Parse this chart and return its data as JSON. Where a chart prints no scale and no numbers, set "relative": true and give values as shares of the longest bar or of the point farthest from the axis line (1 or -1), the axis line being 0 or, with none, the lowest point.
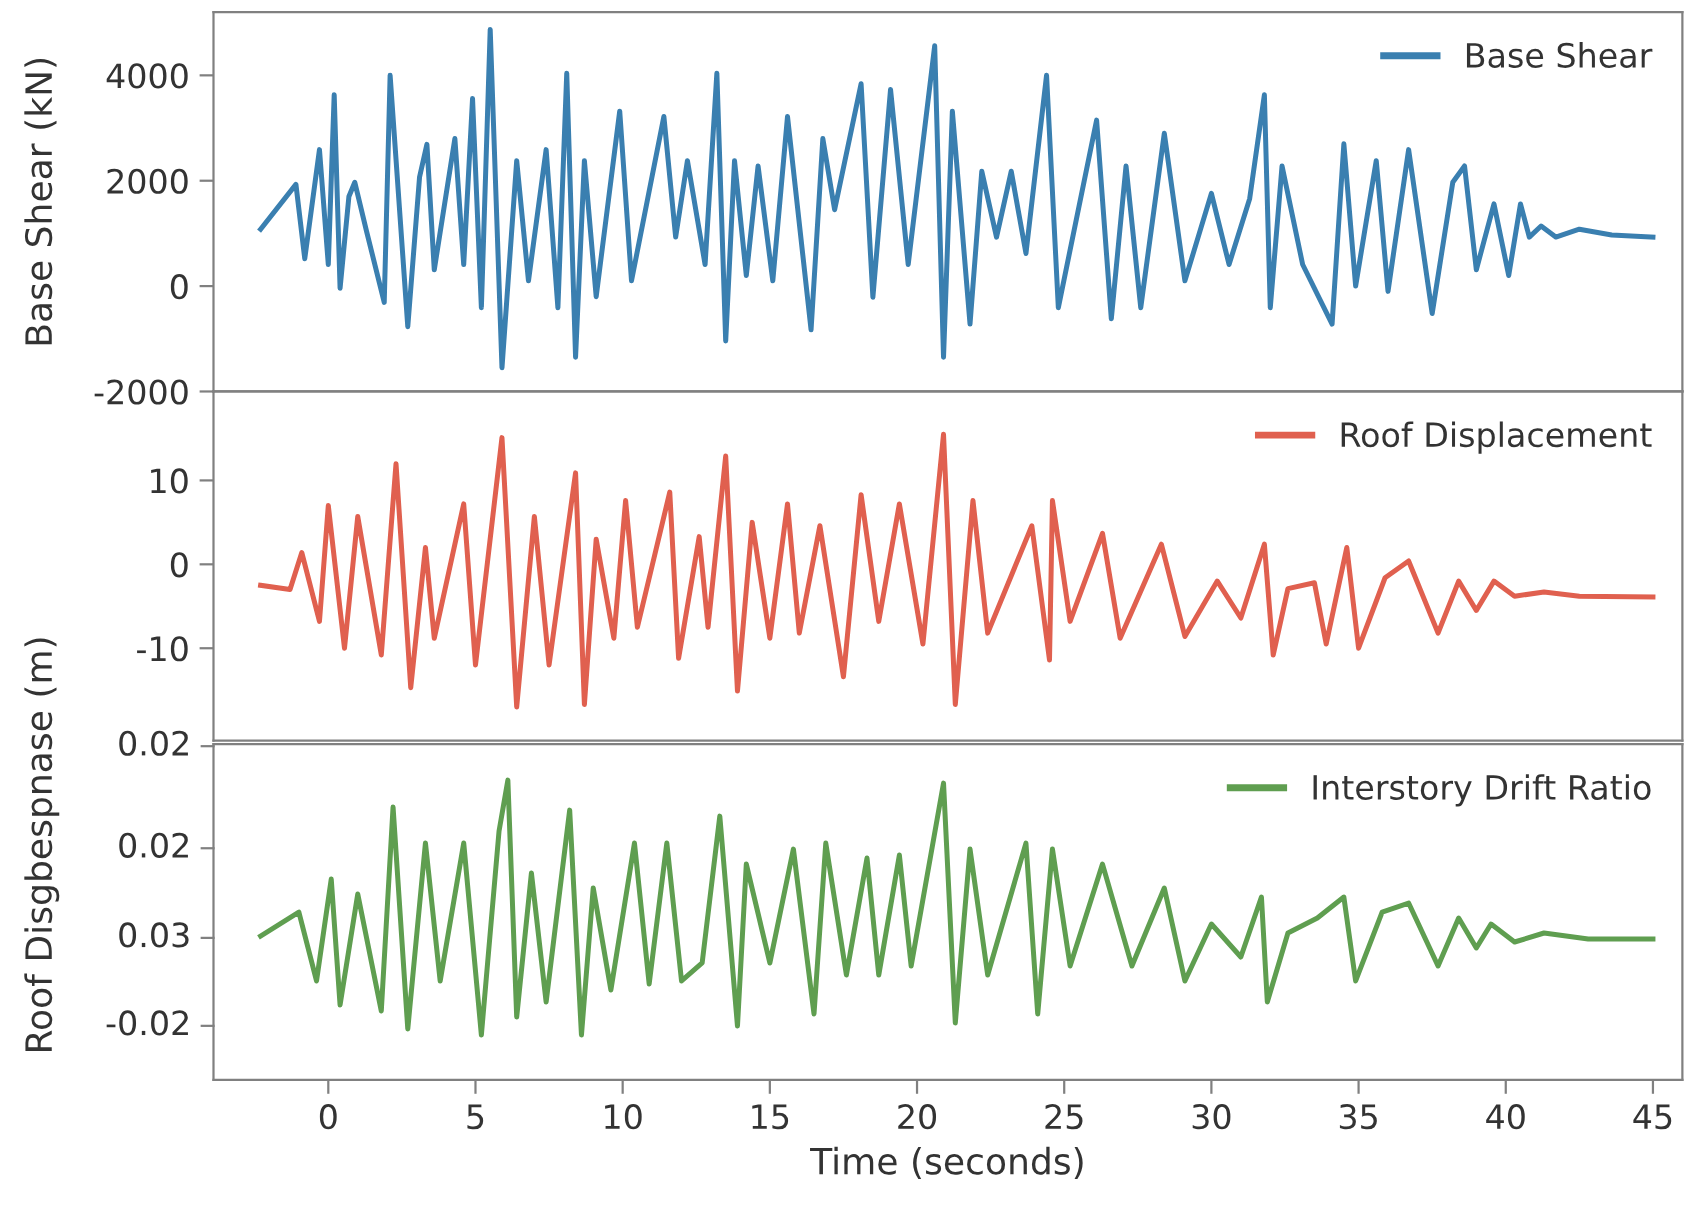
{
  "chart_data": [
    {
      "type": "line",
      "ylabel": "Base Shear (kN)",
      "xlim": [
        -3.9,
        46
      ],
      "ylim": [
        -2000,
        5200
      ],
      "yticks": [
        -2000,
        0,
        2000,
        4000
      ],
      "tick_labels": "y",
      "legend": "top right",
      "grid": false,
      "series": [
        {
          "name": "Base Shear",
          "color": "#3a7fb0",
          "x": [
            -2.3,
            -1.1,
            -0.8,
            -0.3,
            0,
            0.2,
            0.4,
            0.7,
            0.9,
            1.3,
            1.9,
            2.1,
            2.7,
            3.1,
            3.35,
            3.6,
            4.3,
            4.6,
            4.9,
            5.2,
            5.5,
            5.9,
            6.4,
            6.8,
            7.4,
            7.8,
            8.1,
            8.4,
            8.7,
            9.1,
            9.9,
            10.3,
            11.4,
            11.8,
            12.2,
            12.8,
            13.2,
            13.5,
            13.8,
            14.2,
            14.6,
            15.1,
            15.6,
            16.4,
            16.8,
            17.2,
            18.1,
            18.5,
            19.1,
            19.7,
            20.6,
            20.9,
            21.2,
            21.8,
            22.2,
            22.7,
            23.2,
            23.7,
            24.4,
            24.8,
            26.1,
            26.6,
            27.1,
            27.6,
            28.4,
            29.1,
            30.0,
            30.6,
            31.3,
            31.8,
            32.0,
            32.4,
            33.1,
            34.1,
            34.5,
            34.9,
            35.6,
            36.0,
            36.7,
            37.5,
            38.2,
            38.6,
            39.0,
            39.6,
            40.1,
            40.5,
            40.8,
            41.2,
            41.7,
            42.5,
            43.6,
            45.0
          ],
          "values": [
            1080,
            1930,
            520,
            2590,
            410,
            3630,
            -40,
            1700,
            1970,
            1040,
            -310,
            4000,
            -770,
            2070,
            2690,
            310,
            2800,
            410,
            3560,
            -410,
            4870,
            -1550,
            2380,
            100,
            2590,
            -410,
            4040,
            -1350,
            2380,
            -200,
            3320,
            100,
            3220,
            930,
            2380,
            410,
            4040,
            -1040,
            2380,
            200,
            2280,
            100,
            3220,
            -830,
            2800,
            1450,
            3840,
            -210,
            3730,
            410,
            4560,
            -1350,
            3320,
            -720,
            2180,
            930,
            2180,
            620,
            4000,
            -410,
            3150,
            -620,
            2280,
            -410,
            2900,
            100,
            1760,
            410,
            1660,
            3630,
            -410,
            2280,
            410,
            -720,
            2700,
            0,
            2380,
            -100,
            2590,
            -520,
            1970,
            2280,
            310,
            1560,
            200,
            1560,
            930,
            1140,
            930,
            1080,
            970,
            930
          ]
        }
      ]
    },
    {
      "type": "line",
      "xlim": [
        -3.9,
        46
      ],
      "ylim": [
        -21,
        20.6
      ],
      "yticks": [
        -10,
        0,
        10
      ],
      "tick_labels": "y",
      "legend": "top right",
      "grid": false,
      "series": [
        {
          "name": "Roof Displacement",
          "color": "#e0604f",
          "x": [
            -2.3,
            -1.3,
            -0.9,
            -0.3,
            0,
            0.55,
            1.0,
            1.8,
            2.3,
            2.8,
            3.3,
            3.6,
            4.6,
            5.0,
            5.9,
            6.4,
            7.0,
            7.5,
            8.4,
            8.7,
            9.1,
            9.7,
            10.1,
            10.5,
            11.6,
            11.9,
            12.6,
            12.9,
            13.5,
            13.9,
            14.4,
            15.0,
            15.6,
            16.0,
            16.7,
            17.5,
            18.1,
            18.7,
            19.4,
            20.2,
            20.9,
            21.3,
            21.9,
            22.4,
            23.9,
            24.5,
            24.6,
            25.2,
            26.3,
            26.9,
            28.3,
            29.1,
            30.2,
            31.0,
            31.8,
            32.1,
            32.6,
            33.5,
            33.9,
            34.6,
            35.0,
            35.9,
            36.7,
            37.7,
            38.4,
            39.0,
            39.6,
            40.3,
            41.3,
            42.5,
            45.0
          ],
          "values": [
            -2.5,
            -3,
            1.4,
            -6.8,
            7,
            -10,
            5.7,
            -10.8,
            12,
            -14.7,
            2,
            -8.8,
            7.2,
            -12,
            15.1,
            -17,
            5.7,
            -12,
            10.9,
            -16.7,
            3,
            -8.8,
            7.6,
            -7.5,
            8.6,
            -11.2,
            3.3,
            -7.5,
            12.9,
            -15.1,
            5,
            -8.8,
            7.2,
            -8.2,
            4.6,
            -13.4,
            8.3,
            -6.8,
            7.2,
            -9.5,
            15.5,
            -16.7,
            7.6,
            -8.2,
            4.6,
            -11.4,
            7.6,
            -6.8,
            3.7,
            -8.8,
            2.4,
            -8.6,
            -2,
            -6.4,
            2.4,
            -10.8,
            -2.9,
            -2.2,
            -9.5,
            2,
            -10,
            -1.6,
            0.4,
            -8.2,
            -2,
            -5.5,
            -2,
            -3.8,
            -3.3,
            -3.8,
            -3.9
          ]
        }
      ]
    },
    {
      "type": "line",
      "xlabel": "Time (seconds)",
      "ylabel": "Roof Disgbespnase (m)",
      "xlim": [
        -3.9,
        46
      ],
      "xticks": [
        0,
        5,
        10,
        15,
        20,
        25,
        30,
        35,
        40,
        45
      ],
      "relative": true,
      "annotations": [
        "0.02",
        "0.02",
        "0.03",
        "-0.02"
      ],
      "legend": "top right",
      "grid": false,
      "series": [
        {
          "name": "Interstory Drift Ratio",
          "color": "#5f9e50",
          "x": [
            -2.3,
            -1.0,
            -0.4,
            0.1,
            0.4,
            1.0,
            1.8,
            2.2,
            2.7,
            3.3,
            3.8,
            4.6,
            5.2,
            5.8,
            6.1,
            6.4,
            6.9,
            7.4,
            8.2,
            8.6,
            9.0,
            9.6,
            10.4,
            10.9,
            11.5,
            12.0,
            12.7,
            13.3,
            13.9,
            14.2,
            15.0,
            15.8,
            16.5,
            16.9,
            17.6,
            18.3,
            18.7,
            19.4,
            19.8,
            20.9,
            21.3,
            21.8,
            22.4,
            23.7,
            24.1,
            24.6,
            25.2,
            26.3,
            27.3,
            28.4,
            29.1,
            30.0,
            31.0,
            31.7,
            31.9,
            32.6,
            33.6,
            34.5,
            34.9,
            35.8,
            36.7,
            37.7,
            38.4,
            39.0,
            39.5,
            40.3,
            41.3,
            42.8,
            45.0
          ],
          "values": [
            0.48,
            0.56,
            0.33,
            0.67,
            0.25,
            0.62,
            0.23,
            0.91,
            0.17,
            0.79,
            0.33,
            0.79,
            0.15,
            0.83,
            1,
            0.21,
            0.69,
            0.26,
            0.9,
            0.15,
            0.64,
            0.3,
            0.79,
            0.32,
            0.79,
            0.33,
            0.39,
            0.88,
            0.18,
            0.72,
            0.39,
            0.77,
            0.22,
            0.79,
            0.35,
            0.74,
            0.35,
            0.75,
            0.38,
            0.99,
            0.19,
            0.77,
            0.35,
            0.79,
            0.22,
            0.77,
            0.38,
            0.72,
            0.38,
            0.64,
            0.33,
            0.52,
            0.41,
            0.61,
            0.26,
            0.49,
            0.54,
            0.61,
            0.33,
            0.56,
            0.59,
            0.38,
            0.54,
            0.44,
            0.52,
            0.46,
            0.49,
            0.47,
            0.47
          ]
        }
      ]
    }
  ]
}
